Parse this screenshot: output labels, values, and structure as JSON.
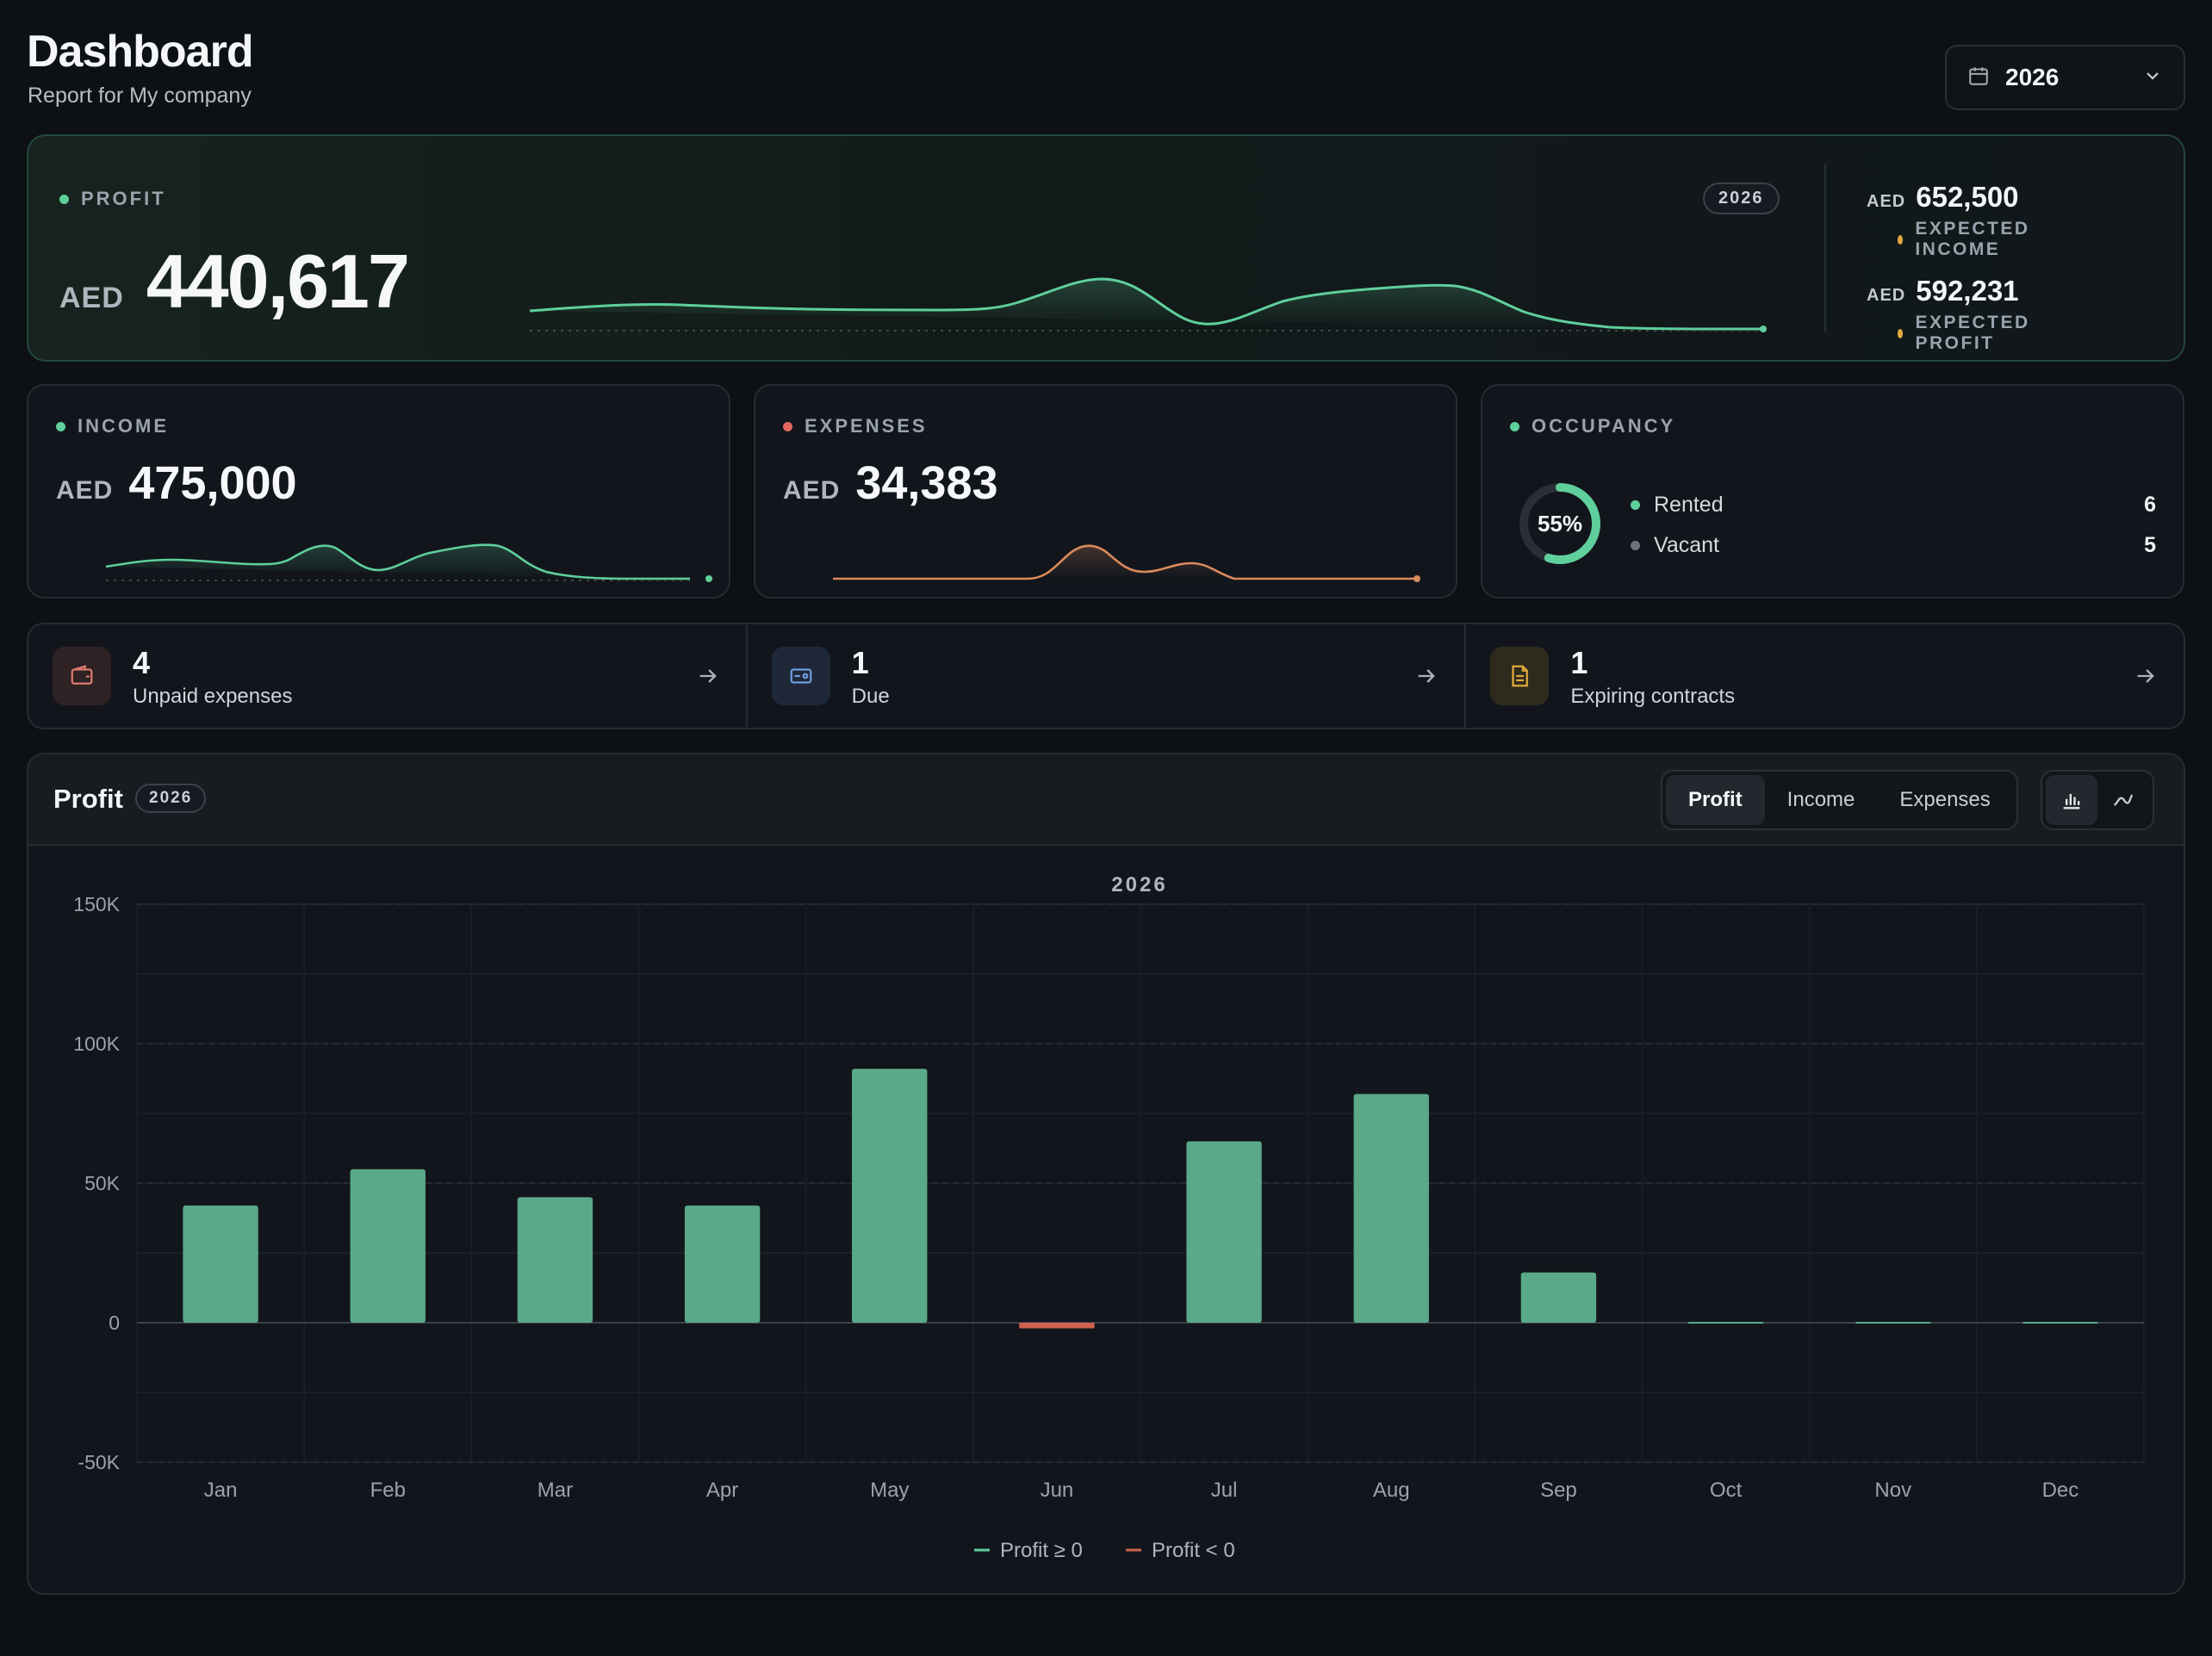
{
  "header": {
    "title": "Dashboard",
    "subtitle": "Report for My company",
    "year_select": {
      "value": "2026",
      "icon": "calendar-icon"
    }
  },
  "hero": {
    "label": "PROFIT",
    "currency": "AED",
    "value": "440,617",
    "year_badge": "2026",
    "expected_income": {
      "label": "EXPECTED INCOME",
      "currency": "AED",
      "value": "652,500"
    },
    "expected_profit": {
      "label": "EXPECTED PROFIT",
      "currency": "AED",
      "value": "592,231"
    }
  },
  "income": {
    "label": "INCOME",
    "currency": "AED",
    "value": "475,000"
  },
  "expenses": {
    "label": "EXPENSES",
    "currency": "AED",
    "value": "34,383"
  },
  "occupancy": {
    "label": "OCCUPANCY",
    "percent_label": "55%",
    "percent": 55,
    "rows": [
      {
        "label": "Rented",
        "count": "6"
      },
      {
        "label": "Vacant",
        "count": "5"
      }
    ]
  },
  "actions": [
    {
      "count": "4",
      "label": "Unpaid expenses",
      "icon": "wallet-icon"
    },
    {
      "count": "1",
      "label": "Due",
      "icon": "card-icon"
    },
    {
      "count": "1",
      "label": "Expiring contracts",
      "icon": "document-icon"
    }
  ],
  "panel": {
    "title": "Profit",
    "year_badge": "2026",
    "tabs": [
      {
        "label": "Profit",
        "active": true
      },
      {
        "label": "Income",
        "active": false
      },
      {
        "label": "Expenses",
        "active": false
      }
    ],
    "views": [
      "bar-chart-icon",
      "line-chart-icon"
    ]
  },
  "colors": {
    "positive": "#5aa988",
    "negative": "#d0624f",
    "accent_green": "#5fcf9c",
    "accent_amber": "#e2a93b",
    "accent_red": "#e2685e"
  },
  "chart_data": {
    "type": "bar",
    "title": "2026",
    "categories": [
      "Jan",
      "Feb",
      "Mar",
      "Apr",
      "May",
      "Jun",
      "Jul",
      "Aug",
      "Sep",
      "Oct",
      "Nov",
      "Dec"
    ],
    "values": [
      42000,
      55000,
      45000,
      42000,
      91000,
      -2000,
      65000,
      82000,
      18000,
      0,
      0,
      0
    ],
    "ylim": [
      -50000,
      150000
    ],
    "yticks": [
      {
        "value": 150000,
        "label": "150K"
      },
      {
        "value": 100000,
        "label": "100K"
      },
      {
        "value": 50000,
        "label": "50K"
      },
      {
        "value": 0,
        "label": "0"
      },
      {
        "value": -50000,
        "label": "-50K"
      }
    ],
    "legend": [
      {
        "name": "Profit ≥ 0",
        "color": "#5fcf9c"
      },
      {
        "name": "Profit < 0",
        "color": "#d0624f"
      }
    ],
    "legend_position": "bottom",
    "grid": true
  }
}
